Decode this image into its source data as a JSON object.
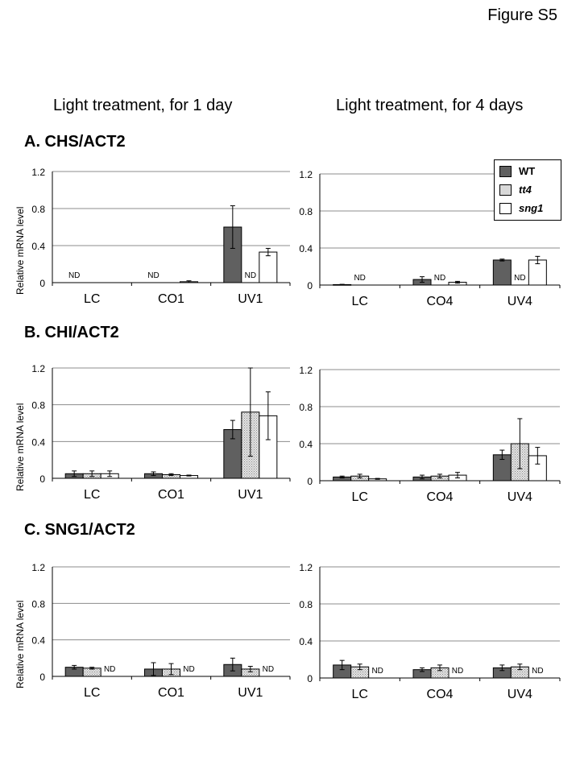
{
  "figure_label": "Figure S5",
  "column_headers": [
    "Light treatment, for 1 day",
    "Light treatment, for 4 days"
  ],
  "sections": [
    {
      "title": "A. CHS/ACT2"
    },
    {
      "title": "B. CHI/ACT2"
    },
    {
      "title": "C. SNG1/ACT2"
    }
  ],
  "ylabel": "Relative mRNA level",
  "nd_label": "ND",
  "legend": [
    {
      "name": "WT",
      "color": "#606060"
    },
    {
      "name": "tt4",
      "color": "#d9d9d9"
    },
    {
      "name": "sng1",
      "color": "#ffffff"
    }
  ],
  "chart_data": [
    {
      "type": "bar",
      "id": "A-1day",
      "categories": [
        "LC",
        "CO1",
        "UV1"
      ],
      "ylim": [
        0,
        1.2
      ],
      "yticks": [
        0,
        0.4,
        0.8,
        1.2
      ],
      "grid": true,
      "series": [
        {
          "name": "WT",
          "values": [
            0,
            0,
            0.6
          ],
          "errors": [
            0,
            0,
            0.23
          ],
          "nd": [
            true,
            true,
            false
          ]
        },
        {
          "name": "tt4",
          "values": [
            0,
            0,
            0
          ],
          "errors": [
            0,
            0,
            0
          ],
          "nd": [
            false,
            false,
            true
          ]
        },
        {
          "name": "sng1",
          "values": [
            0,
            0.01,
            0.33
          ],
          "errors": [
            0,
            0.01,
            0.04
          ],
          "nd": [
            false,
            false,
            false
          ]
        }
      ]
    },
    {
      "type": "bar",
      "id": "A-4days",
      "categories": [
        "LC",
        "CO4",
        "UV4"
      ],
      "ylim": [
        0,
        1.2
      ],
      "yticks": [
        0,
        0.4,
        0.8,
        1.2
      ],
      "grid": true,
      "series": [
        {
          "name": "WT",
          "values": [
            0.005,
            0.06,
            0.27
          ],
          "errors": [
            0.003,
            0.03,
            0.01
          ],
          "nd": [
            false,
            false,
            false
          ]
        },
        {
          "name": "tt4",
          "values": [
            0,
            0,
            0
          ],
          "errors": [
            0,
            0,
            0
          ],
          "nd": [
            true,
            true,
            true
          ]
        },
        {
          "name": "sng1",
          "values": [
            0,
            0.03,
            0.27
          ],
          "errors": [
            0,
            0.01,
            0.04
          ],
          "nd": [
            false,
            false,
            false
          ]
        }
      ]
    },
    {
      "type": "bar",
      "id": "B-1day",
      "categories": [
        "LC",
        "CO1",
        "UV1"
      ],
      "ylim": [
        0,
        1.2
      ],
      "yticks": [
        0,
        0.4,
        0.8,
        1.2
      ],
      "grid": true,
      "series": [
        {
          "name": "WT",
          "values": [
            0.05,
            0.05,
            0.53
          ],
          "errors": [
            0.03,
            0.02,
            0.1
          ],
          "nd": [
            false,
            false,
            false
          ]
        },
        {
          "name": "tt4",
          "values": [
            0.05,
            0.04,
            0.72
          ],
          "errors": [
            0.03,
            0.01,
            0.48
          ],
          "nd": [
            false,
            false,
            false
          ]
        },
        {
          "name": "sng1",
          "values": [
            0.05,
            0.03,
            0.68
          ],
          "errors": [
            0.03,
            0.005,
            0.26
          ],
          "nd": [
            false,
            false,
            false
          ]
        }
      ]
    },
    {
      "type": "bar",
      "id": "B-4days",
      "categories": [
        "LC",
        "CO4",
        "UV4"
      ],
      "ylim": [
        0,
        1.2
      ],
      "yticks": [
        0,
        0.4,
        0.8,
        1.2
      ],
      "grid": true,
      "series": [
        {
          "name": "WT",
          "values": [
            0.04,
            0.04,
            0.28
          ],
          "errors": [
            0.01,
            0.02,
            0.05
          ],
          "nd": [
            false,
            false,
            false
          ]
        },
        {
          "name": "tt4",
          "values": [
            0.05,
            0.05,
            0.4
          ],
          "errors": [
            0.02,
            0.02,
            0.27
          ],
          "nd": [
            false,
            false,
            false
          ]
        },
        {
          "name": "sng1",
          "values": [
            0.02,
            0.06,
            0.27
          ],
          "errors": [
            0.005,
            0.03,
            0.09
          ],
          "nd": [
            false,
            false,
            false
          ]
        }
      ]
    },
    {
      "type": "bar",
      "id": "C-1day",
      "categories": [
        "LC",
        "CO1",
        "UV1"
      ],
      "ylim": [
        0,
        1.2
      ],
      "yticks": [
        0,
        0.4,
        0.8,
        1.2
      ],
      "grid": true,
      "series": [
        {
          "name": "WT",
          "values": [
            0.1,
            0.08,
            0.13
          ],
          "errors": [
            0.02,
            0.07,
            0.07
          ],
          "nd": [
            false,
            false,
            false
          ]
        },
        {
          "name": "tt4",
          "values": [
            0.09,
            0.08,
            0.08
          ],
          "errors": [
            0.01,
            0.06,
            0.03
          ],
          "nd": [
            false,
            false,
            false
          ]
        },
        {
          "name": "sng1",
          "values": [
            0,
            0,
            0
          ],
          "errors": [
            0,
            0,
            0
          ],
          "nd": [
            true,
            true,
            true
          ]
        }
      ]
    },
    {
      "type": "bar",
      "id": "C-4days",
      "categories": [
        "LC",
        "CO4",
        "UV4"
      ],
      "ylim": [
        0,
        1.2
      ],
      "yticks": [
        0,
        0.4,
        0.8,
        1.2
      ],
      "grid": true,
      "series": [
        {
          "name": "WT",
          "values": [
            0.14,
            0.09,
            0.11
          ],
          "errors": [
            0.05,
            0.02,
            0.03
          ],
          "nd": [
            false,
            false,
            false
          ]
        },
        {
          "name": "tt4",
          "values": [
            0.12,
            0.11,
            0.12
          ],
          "errors": [
            0.03,
            0.03,
            0.03
          ],
          "nd": [
            false,
            false,
            false
          ]
        },
        {
          "name": "sng1",
          "values": [
            0,
            0,
            0
          ],
          "errors": [
            0,
            0,
            0
          ],
          "nd": [
            true,
            true,
            true
          ]
        }
      ]
    }
  ]
}
